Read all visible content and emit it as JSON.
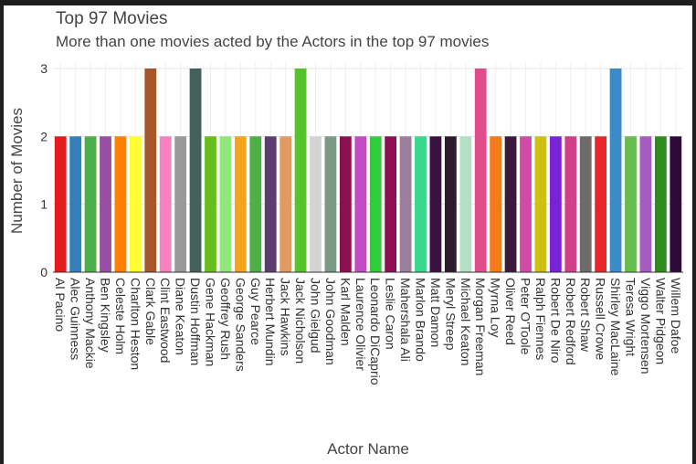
{
  "chart_data": {
    "type": "bar",
    "title": "Top 97 Movies",
    "subtitle": "More than one movies acted by the Actors in the top 97 movies",
    "xlabel": "Actor Name",
    "ylabel": "Number of Movies",
    "ylim": [
      0,
      3
    ],
    "yticks": [
      0,
      1,
      2,
      3
    ],
    "grid": true,
    "legend": "none",
    "categories": [
      "Al Pacino",
      "Alec Guinness",
      "Anthony Mackie",
      "Ben Kingsley",
      "Celeste Holm",
      "Charlton Heston",
      "Clark Gable",
      "Clint Eastwood",
      "Diane Keaton",
      "Dustin Hoffman",
      "Gene Hackman",
      "Geoffrey Rush",
      "George Sanders",
      "Guy Pearce",
      "Herbert Mundin",
      "Jack Hawkins",
      "Jack Nicholson",
      "John Gielgud",
      "John Goodman",
      "Karl Malden",
      "Laurence Olivier",
      "Leonardo DiCaprio",
      "Leslie Caron",
      "Mahershala Ali",
      "Marlon Brando",
      "Matt Damon",
      "Meryl Streep",
      "Michael Keaton",
      "Morgan Freeman",
      "Myrna Loy",
      "Oliver Reed",
      "Peter O'Toole",
      "Ralph Fiennes",
      "Robert De Niro",
      "Robert Redford",
      "Robert Shaw",
      "Russell Crowe",
      "Shirley MacLaine",
      "Teresa Wright",
      "Viggo Mortensen",
      "Walter Pidgeon",
      "Willem Dafoe"
    ],
    "values": [
      2,
      2,
      2,
      2,
      2,
      2,
      3,
      2,
      2,
      3,
      2,
      2,
      2,
      2,
      2,
      2,
      3,
      2,
      2,
      2,
      2,
      2,
      2,
      2,
      2,
      2,
      2,
      2,
      3,
      2,
      2,
      2,
      2,
      2,
      2,
      2,
      2,
      3,
      2,
      2,
      2,
      2
    ],
    "colors": [
      "#e41a1c",
      "#377eb8",
      "#4daf4a",
      "#984ea3",
      "#ff7f00",
      "#ffff33",
      "#a65628",
      "#f781bf",
      "#999999",
      "#44605a",
      "#66bd1c",
      "#90e87a",
      "#f5a21c",
      "#4fae48",
      "#5c3d70",
      "#e39a60",
      "#55c32a",
      "#d4d4d4",
      "#7b9a85",
      "#8c0f52",
      "#c44bc4",
      "#2fcd3a",
      "#8c0f52",
      "#9b7d9e",
      "#39d68c",
      "#3a1240",
      "#2a1a2a",
      "#b3e0c4",
      "#e04d8a",
      "#f47a1a",
      "#3a1a3a",
      "#d04aa8",
      "#cfbf10",
      "#7a22d6",
      "#d0408a",
      "#6e6a6a",
      "#e8262a",
      "#3d8ac8",
      "#66bd4f",
      "#a55bc0",
      "#2e8c1a",
      "#2d0a3a"
    ]
  }
}
